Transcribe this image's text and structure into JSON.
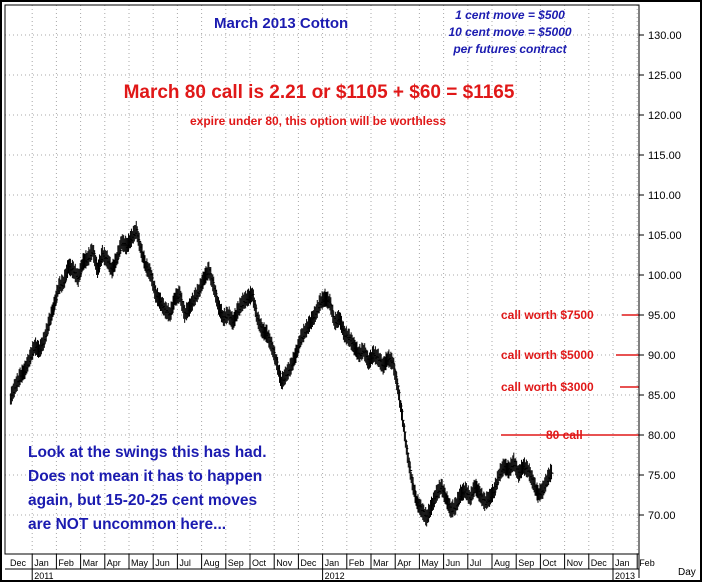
{
  "chart_data": {
    "type": "bar",
    "title": "March 2013 Cotton",
    "notes": [
      "1 cent move = $500",
      "10 cent move = $5000",
      "per futures contract"
    ],
    "headline": "March 80 call is 2.21 or $1105 + $60 = $1165",
    "subline": "expire under 80, this option will be worthless",
    "comment_lines": [
      "Look at the swings this has had.",
      "Does not mean it has to happen",
      "again, but 15-20-25 cent moves",
      "are NOT uncommon here..."
    ],
    "xlabel": "Day",
    "ylim": [
      65.5,
      135.5
    ],
    "y_ticks": [
      70.0,
      75.0,
      80.0,
      85.0,
      90.0,
      95.0,
      100.0,
      105.0,
      110.0,
      115.0,
      120.0,
      125.0,
      130.0
    ],
    "x_months": [
      {
        "label": "Dec",
        "year": ""
      },
      {
        "label": "Jan",
        "year": "2011"
      },
      {
        "label": "Feb",
        "year": ""
      },
      {
        "label": "Mar",
        "year": ""
      },
      {
        "label": "Apr",
        "year": ""
      },
      {
        "label": "May",
        "year": ""
      },
      {
        "label": "Jun",
        "year": ""
      },
      {
        "label": "Jul",
        "year": ""
      },
      {
        "label": "Aug",
        "year": ""
      },
      {
        "label": "Sep",
        "year": ""
      },
      {
        "label": "Oct",
        "year": ""
      },
      {
        "label": "Nov",
        "year": ""
      },
      {
        "label": "Dec",
        "year": ""
      },
      {
        "label": "Jan",
        "year": "2012"
      },
      {
        "label": "Feb",
        "year": ""
      },
      {
        "label": "Mar",
        "year": ""
      },
      {
        "label": "Apr",
        "year": ""
      },
      {
        "label": "May",
        "year": ""
      },
      {
        "label": "Jun",
        "year": ""
      },
      {
        "label": "Jul",
        "year": ""
      },
      {
        "label": "Aug",
        "year": ""
      },
      {
        "label": "Sep",
        "year": ""
      },
      {
        "label": "Oct",
        "year": ""
      },
      {
        "label": "Nov",
        "year": ""
      },
      {
        "label": "Dec",
        "year": ""
      },
      {
        "label": "Jan",
        "year": "2013"
      },
      {
        "label": "Feb",
        "year": ""
      }
    ],
    "reference_lines": [
      {
        "label": "call worth $7500",
        "value": 95.0,
        "color": "#e01818"
      },
      {
        "label": "call worth $5000",
        "value": 90.0,
        "color": "#e01818"
      },
      {
        "label": "call worth $3000",
        "value": 86.0,
        "color": "#e01818"
      },
      {
        "label": "80 call",
        "value": 80.0,
        "color": "#e01818"
      }
    ],
    "series": [
      {
        "color": "#000000",
        "points": [
          {
            "m": 0.1,
            "v": 84.5
          },
          {
            "m": 0.3,
            "v": 86.0
          },
          {
            "m": 0.5,
            "v": 87.2
          },
          {
            "m": 0.7,
            "v": 88.0
          },
          {
            "m": 0.9,
            "v": 89.5
          },
          {
            "m": 1.1,
            "v": 91.0
          },
          {
            "m": 1.3,
            "v": 90.5
          },
          {
            "m": 1.5,
            "v": 91.8
          },
          {
            "m": 1.7,
            "v": 94.0
          },
          {
            "m": 1.9,
            "v": 96.0
          },
          {
            "m": 2.1,
            "v": 98.5
          },
          {
            "m": 2.3,
            "v": 99.0
          },
          {
            "m": 2.5,
            "v": 101.0
          },
          {
            "m": 2.7,
            "v": 100.5
          },
          {
            "m": 2.9,
            "v": 99.5
          },
          {
            "m": 3.1,
            "v": 101.5
          },
          {
            "m": 3.3,
            "v": 102.0
          },
          {
            "m": 3.5,
            "v": 103.0
          },
          {
            "m": 3.7,
            "v": 100.5
          },
          {
            "m": 3.9,
            "v": 102.5
          },
          {
            "m": 4.1,
            "v": 101.8
          },
          {
            "m": 4.3,
            "v": 100.5
          },
          {
            "m": 4.5,
            "v": 102.0
          },
          {
            "m": 4.7,
            "v": 104.0
          },
          {
            "m": 4.9,
            "v": 103.5
          },
          {
            "m": 5.1,
            "v": 104.5
          },
          {
            "m": 5.3,
            "v": 105.5
          },
          {
            "m": 5.5,
            "v": 103.0
          },
          {
            "m": 5.7,
            "v": 101.0
          },
          {
            "m": 5.9,
            "v": 100.0
          },
          {
            "m": 6.1,
            "v": 97.5
          },
          {
            "m": 6.3,
            "v": 96.5
          },
          {
            "m": 6.5,
            "v": 95.5
          },
          {
            "m": 6.7,
            "v": 95.0
          },
          {
            "m": 6.9,
            "v": 97.0
          },
          {
            "m": 7.1,
            "v": 97.5
          },
          {
            "m": 7.3,
            "v": 95.0
          },
          {
            "m": 7.5,
            "v": 95.8
          },
          {
            "m": 7.7,
            "v": 97.0
          },
          {
            "m": 7.9,
            "v": 98.0
          },
          {
            "m": 8.1,
            "v": 99.5
          },
          {
            "m": 8.3,
            "v": 100.5
          },
          {
            "m": 8.5,
            "v": 98.5
          },
          {
            "m": 8.7,
            "v": 96.0
          },
          {
            "m": 8.9,
            "v": 94.5
          },
          {
            "m": 9.1,
            "v": 95.0
          },
          {
            "m": 9.3,
            "v": 94.0
          },
          {
            "m": 9.5,
            "v": 95.5
          },
          {
            "m": 9.7,
            "v": 96.5
          },
          {
            "m": 9.9,
            "v": 97.0
          },
          {
            "m": 10.1,
            "v": 97.5
          },
          {
            "m": 10.3,
            "v": 94.5
          },
          {
            "m": 10.5,
            "v": 93.0
          },
          {
            "m": 10.7,
            "v": 92.5
          },
          {
            "m": 10.9,
            "v": 91.0
          },
          {
            "m": 11.1,
            "v": 89.0
          },
          {
            "m": 11.3,
            "v": 86.5
          },
          {
            "m": 11.5,
            "v": 87.5
          },
          {
            "m": 11.7,
            "v": 88.5
          },
          {
            "m": 11.9,
            "v": 90.0
          },
          {
            "m": 12.1,
            "v": 92.0
          },
          {
            "m": 12.3,
            "v": 93.0
          },
          {
            "m": 12.5,
            "v": 94.0
          },
          {
            "m": 12.7,
            "v": 95.0
          },
          {
            "m": 12.9,
            "v": 96.5
          },
          {
            "m": 13.1,
            "v": 97.0
          },
          {
            "m": 13.3,
            "v": 96.5
          },
          {
            "m": 13.5,
            "v": 94.0
          },
          {
            "m": 13.7,
            "v": 94.5
          },
          {
            "m": 13.9,
            "v": 92.5
          },
          {
            "m": 14.1,
            "v": 92.0
          },
          {
            "m": 14.3,
            "v": 91.0
          },
          {
            "m": 14.5,
            "v": 90.0
          },
          {
            "m": 14.7,
            "v": 90.5
          },
          {
            "m": 14.9,
            "v": 89.0
          },
          {
            "m": 15.1,
            "v": 90.0
          },
          {
            "m": 15.3,
            "v": 89.5
          },
          {
            "m": 15.5,
            "v": 88.5
          },
          {
            "m": 15.7,
            "v": 89.5
          },
          {
            "m": 15.9,
            "v": 89.0
          },
          {
            "m": 16.1,
            "v": 86.0
          },
          {
            "m": 16.3,
            "v": 82.0
          },
          {
            "m": 16.5,
            "v": 77.5
          },
          {
            "m": 16.7,
            "v": 74.0
          },
          {
            "m": 16.9,
            "v": 71.5
          },
          {
            "m": 17.1,
            "v": 70.5
          },
          {
            "m": 17.3,
            "v": 69.5
          },
          {
            "m": 17.5,
            "v": 71.0
          },
          {
            "m": 17.7,
            "v": 72.5
          },
          {
            "m": 17.9,
            "v": 73.5
          },
          {
            "m": 18.1,
            "v": 72.0
          },
          {
            "m": 18.3,
            "v": 70.5
          },
          {
            "m": 18.5,
            "v": 71.0
          },
          {
            "m": 18.7,
            "v": 72.5
          },
          {
            "m": 18.9,
            "v": 73.0
          },
          {
            "m": 19.1,
            "v": 72.0
          },
          {
            "m": 19.3,
            "v": 73.5
          },
          {
            "m": 19.5,
            "v": 72.5
          },
          {
            "m": 19.7,
            "v": 71.5
          },
          {
            "m": 19.9,
            "v": 72.0
          },
          {
            "m": 20.1,
            "v": 73.0
          },
          {
            "m": 20.3,
            "v": 75.0
          },
          {
            "m": 20.5,
            "v": 76.0
          },
          {
            "m": 20.7,
            "v": 75.5
          },
          {
            "m": 20.9,
            "v": 76.5
          },
          {
            "m": 21.1,
            "v": 75.0
          },
          {
            "m": 21.3,
            "v": 76.0
          },
          {
            "m": 21.5,
            "v": 75.5
          },
          {
            "m": 21.7,
            "v": 74.0
          },
          {
            "m": 21.9,
            "v": 72.5
          },
          {
            "m": 22.1,
            "v": 73.0
          },
          {
            "m": 22.3,
            "v": 74.5
          },
          {
            "m": 22.5,
            "v": 75.5
          }
        ]
      }
    ]
  }
}
